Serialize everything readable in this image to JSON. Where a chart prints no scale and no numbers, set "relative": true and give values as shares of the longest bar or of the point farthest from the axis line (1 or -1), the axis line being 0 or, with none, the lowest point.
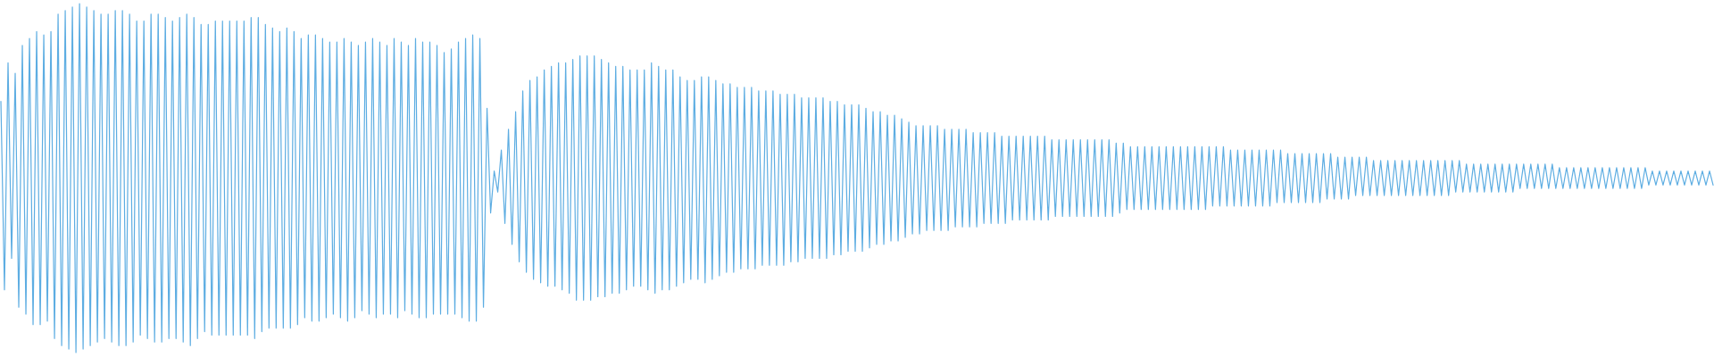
{
  "chart_data": {
    "type": "line",
    "relative": true,
    "color": "#5dade2",
    "categories": [
      null,
      null,
      null,
      null,
      null,
      null,
      null,
      null,
      null,
      null,
      null,
      null,
      null,
      null,
      null,
      null,
      null,
      null,
      null,
      null,
      null,
      null,
      null,
      null,
      null,
      null,
      null,
      null,
      null,
      null,
      null,
      null,
      null,
      null,
      null,
      null,
      null,
      null,
      null,
      null,
      null,
      null,
      null,
      null,
      null,
      null,
      null,
      null,
      null,
      null,
      null,
      null,
      null,
      null,
      null,
      null,
      null,
      null,
      null,
      null,
      null,
      null,
      null,
      null,
      null,
      null,
      null,
      null,
      null,
      null,
      null,
      null,
      null,
      null,
      null,
      null,
      null,
      null,
      null,
      null,
      null,
      null,
      null,
      null,
      null,
      null,
      null,
      null,
      null,
      null,
      null,
      null,
      null,
      null,
      null,
      null,
      null,
      null,
      null,
      null,
      null,
      null,
      null,
      null,
      null,
      null,
      null,
      null,
      null,
      null,
      null,
      null,
      null,
      null,
      null,
      null,
      null,
      null,
      null,
      null,
      null,
      null,
      null,
      null,
      null,
      null,
      null,
      null,
      null,
      null,
      null,
      null,
      null,
      null,
      null,
      null,
      null,
      null,
      null,
      null,
      null,
      null,
      null,
      null,
      null,
      null,
      null,
      null,
      null,
      null,
      null,
      null,
      null,
      null,
      null,
      null,
      null,
      null,
      null,
      null,
      null,
      null,
      null,
      null,
      null,
      null,
      null,
      null,
      null,
      null,
      null,
      null,
      null,
      null,
      null,
      null,
      null,
      null,
      null,
      null,
      null,
      null,
      null,
      null,
      null,
      null,
      null,
      null,
      null,
      null,
      null,
      null,
      null,
      null,
      null,
      null,
      null,
      null,
      null,
      null,
      null,
      null,
      null,
      null,
      null,
      null,
      null,
      null,
      null,
      null,
      null,
      null,
      null,
      null,
      null,
      null,
      null,
      null,
      null,
      null,
      null,
      null,
      null,
      null,
      null,
      null,
      null,
      null,
      null,
      null,
      null,
      null,
      null,
      null,
      null,
      null,
      null,
      null,
      null,
      null,
      null,
      null,
      null,
      null,
      null,
      null,
      null,
      null,
      null,
      null,
      null,
      null,
      null,
      null,
      null,
      null,
      null,
      null,
      null,
      null,
      null,
      null,
      null,
      null,
      null,
      null,
      null,
      null,
      null,
      null,
      null,
      null,
      null,
      null,
      null,
      null,
      null,
      null,
      null,
      null,
      null,
      null,
      null,
      null,
      null,
      null,
      null,
      null,
      null,
      null,
      null,
      null,
      null,
      null,
      null,
      null,
      null,
      null,
      null,
      null,
      null,
      null,
      null,
      null,
      null,
      null,
      null,
      null,
      null,
      null,
      null,
      null,
      null,
      null,
      null,
      null,
      null,
      null,
      null,
      null,
      null,
      null,
      null,
      null,
      null,
      null,
      null,
      null,
      null,
      null,
      null,
      null,
      null,
      null,
      null,
      null,
      null,
      null,
      null,
      null,
      null,
      null,
      null,
      null,
      null,
      null,
      null,
      null,
      null,
      null,
      null,
      null,
      null,
      null,
      null,
      null,
      null,
      null,
      null,
      null,
      null,
      null,
      null,
      null,
      null,
      null,
      null,
      null,
      null,
      null,
      null,
      null,
      null,
      null,
      null,
      null,
      null,
      null,
      null,
      null,
      null,
      null,
      null,
      null,
      null,
      null,
      null,
      null,
      null,
      null,
      null,
      null,
      null,
      null,
      null,
      null,
      null,
      null,
      null,
      null,
      null,
      null,
      null,
      null,
      null,
      null,
      null,
      null,
      null,
      null,
      null,
      null,
      null,
      null,
      null,
      null,
      null,
      null,
      null,
      null,
      null,
      null,
      null,
      null,
      null,
      null,
      null,
      null,
      null,
      null,
      null,
      null,
      null,
      null,
      null,
      null,
      null,
      null,
      null,
      null,
      null,
      null,
      null,
      null,
      null,
      null,
      null,
      null,
      null,
      null,
      null,
      null,
      null,
      null,
      null,
      null,
      null,
      null,
      null,
      null,
      null,
      null,
      null,
      null,
      null,
      null,
      null,
      null,
      null,
      null,
      null,
      null,
      null,
      null,
      null,
      null,
      null,
      null,
      null,
      null
    ],
    "values": [
      0.72,
      0.18,
      0.83,
      0.27,
      0.8,
      0.13,
      0.88,
      0.11,
      0.9,
      0.08,
      0.92,
      0.08,
      0.91,
      0.09,
      0.92,
      0.04,
      0.97,
      0.02,
      0.98,
      0.01,
      0.99,
      0.0,
      1.0,
      0.01,
      0.99,
      0.02,
      0.98,
      0.03,
      0.97,
      0.04,
      0.97,
      0.03,
      0.98,
      0.02,
      0.98,
      0.02,
      0.97,
      0.03,
      0.95,
      0.05,
      0.95,
      0.04,
      0.97,
      0.03,
      0.97,
      0.03,
      0.96,
      0.04,
      0.95,
      0.04,
      0.96,
      0.03,
      0.97,
      0.02,
      0.96,
      0.04,
      0.94,
      0.06,
      0.94,
      0.05,
      0.95,
      0.05,
      0.95,
      0.05,
      0.95,
      0.05,
      0.95,
      0.05,
      0.95,
      0.05,
      0.96,
      0.04,
      0.96,
      0.06,
      0.94,
      0.07,
      0.93,
      0.07,
      0.92,
      0.07,
      0.93,
      0.07,
      0.92,
      0.08,
      0.9,
      0.1,
      0.91,
      0.09,
      0.91,
      0.09,
      0.9,
      0.1,
      0.89,
      0.11,
      0.89,
      0.1,
      0.9,
      0.09,
      0.89,
      0.1,
      0.88,
      0.12,
      0.89,
      0.11,
      0.9,
      0.1,
      0.89,
      0.11,
      0.88,
      0.11,
      0.9,
      0.1,
      0.89,
      0.12,
      0.88,
      0.11,
      0.9,
      0.1,
      0.89,
      0.1,
      0.89,
      0.11,
      0.88,
      0.11,
      0.86,
      0.11,
      0.87,
      0.11,
      0.89,
      0.1,
      0.9,
      0.09,
      0.91,
      0.09,
      0.9,
      0.13,
      0.7,
      0.4,
      0.52,
      0.46,
      0.58,
      0.37,
      0.64,
      0.31,
      0.69,
      0.26,
      0.75,
      0.23,
      0.78,
      0.21,
      0.79,
      0.2,
      0.81,
      0.19,
      0.82,
      0.19,
      0.83,
      0.18,
      0.83,
      0.17,
      0.84,
      0.15,
      0.85,
      0.15,
      0.85,
      0.15,
      0.85,
      0.16,
      0.84,
      0.16,
      0.83,
      0.17,
      0.82,
      0.17,
      0.82,
      0.18,
      0.81,
      0.19,
      0.81,
      0.19,
      0.81,
      0.18,
      0.83,
      0.17,
      0.82,
      0.18,
      0.81,
      0.18,
      0.81,
      0.19,
      0.79,
      0.2,
      0.78,
      0.21,
      0.78,
      0.21,
      0.79,
      0.2,
      0.79,
      0.21,
      0.78,
      0.22,
      0.77,
      0.23,
      0.77,
      0.23,
      0.76,
      0.24,
      0.76,
      0.24,
      0.76,
      0.24,
      0.75,
      0.25,
      0.75,
      0.25,
      0.75,
      0.25,
      0.74,
      0.25,
      0.74,
      0.26,
      0.74,
      0.26,
      0.73,
      0.27,
      0.73,
      0.27,
      0.73,
      0.27,
      0.73,
      0.27,
      0.72,
      0.28,
      0.72,
      0.28,
      0.71,
      0.29,
      0.71,
      0.29,
      0.71,
      0.29,
      0.7,
      0.3,
      0.69,
      0.31,
      0.69,
      0.31,
      0.68,
      0.32,
      0.68,
      0.32,
      0.67,
      0.33,
      0.66,
      0.34,
      0.65,
      0.34,
      0.65,
      0.35,
      0.65,
      0.35,
      0.65,
      0.35,
      0.64,
      0.35,
      0.64,
      0.36,
      0.64,
      0.36,
      0.64,
      0.36,
      0.63,
      0.36,
      0.63,
      0.37,
      0.63,
      0.37,
      0.63,
      0.37,
      0.62,
      0.37,
      0.62,
      0.38,
      0.62,
      0.38,
      0.62,
      0.38,
      0.62,
      0.38,
      0.62,
      0.38,
      0.62,
      0.38,
      0.61,
      0.39,
      0.61,
      0.39,
      0.61,
      0.39,
      0.61,
      0.39,
      0.61,
      0.39,
      0.61,
      0.39,
      0.61,
      0.39,
      0.61,
      0.39,
      0.61,
      0.39,
      0.6,
      0.4,
      0.6,
      0.41,
      0.59,
      0.41,
      0.59,
      0.41,
      0.59,
      0.41,
      0.59,
      0.41,
      0.59,
      0.41,
      0.59,
      0.41,
      0.59,
      0.41,
      0.59,
      0.41,
      0.59,
      0.41,
      0.59,
      0.41,
      0.59,
      0.41,
      0.59,
      0.42,
      0.59,
      0.42,
      0.59,
      0.42,
      0.58,
      0.42,
      0.58,
      0.42,
      0.58,
      0.42,
      0.58,
      0.42,
      0.58,
      0.42,
      0.58,
      0.42,
      0.58,
      0.43,
      0.58,
      0.43,
      0.57,
      0.43,
      0.57,
      0.43,
      0.57,
      0.43,
      0.57,
      0.43,
      0.57,
      0.43,
      0.57,
      0.44,
      0.57,
      0.44,
      0.56,
      0.44,
      0.56,
      0.44,
      0.56,
      0.45,
      0.56,
      0.45,
      0.56,
      0.45,
      0.55,
      0.45,
      0.55,
      0.45,
      0.55,
      0.45,
      0.55,
      0.45,
      0.55,
      0.45,
      0.55,
      0.45,
      0.55,
      0.45,
      0.55,
      0.45,
      0.55,
      0.45,
      0.55,
      0.45,
      0.55,
      0.45,
      0.55,
      0.46,
      0.55,
      0.46,
      0.54,
      0.46,
      0.54,
      0.46,
      0.54,
      0.46,
      0.54,
      0.46,
      0.54,
      0.46,
      0.54,
      0.46,
      0.54,
      0.46,
      0.54,
      0.47,
      0.54,
      0.47,
      0.54,
      0.47,
      0.54,
      0.47,
      0.54,
      0.47,
      0.54,
      0.47,
      0.53,
      0.47,
      0.53,
      0.47,
      0.53,
      0.47,
      0.53,
      0.47,
      0.53,
      0.47,
      0.53,
      0.47,
      0.53,
      0.47,
      0.53,
      0.47,
      0.53,
      0.47,
      0.53,
      0.47,
      0.53,
      0.47,
      0.53,
      0.47,
      0.53,
      0.48,
      0.52,
      0.48,
      0.52,
      0.48,
      0.52,
      0.48,
      0.52,
      0.48,
      0.52,
      0.48,
      0.52,
      0.48,
      0.52,
      0.48,
      0.52,
      0.48,
      0.52,
      0.48
    ]
  }
}
